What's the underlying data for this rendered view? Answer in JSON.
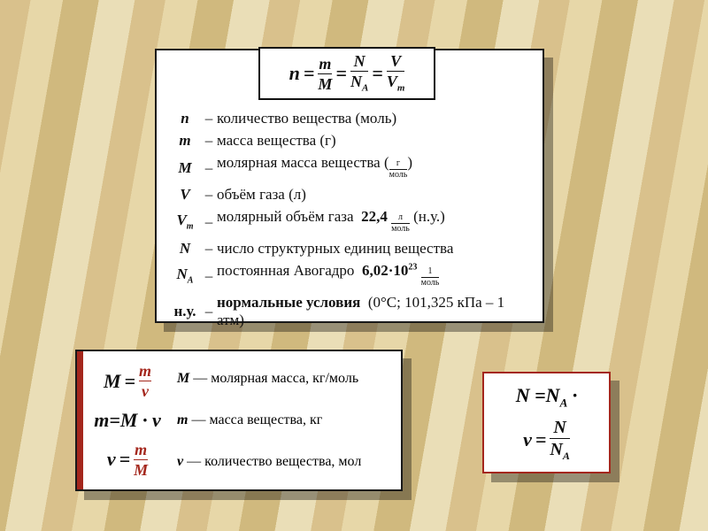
{
  "colors": {
    "accent": "#a4271d",
    "text": "#111",
    "panel": "#fff"
  },
  "main": {
    "equation": {
      "lhs": "n",
      "f1n": "m",
      "f1d": "M",
      "f2n": "N",
      "f2d": "N_A",
      "f3n": "V",
      "f3d": "V_m"
    },
    "rows": [
      {
        "sym": "n",
        "text": "количество вещества (моль)"
      },
      {
        "sym": "m",
        "text": "масса вещества (г)"
      },
      {
        "sym": "M",
        "text": "молярная масса вещества",
        "unit_num": "г",
        "unit_den": "моль"
      },
      {
        "sym": "V",
        "text": "объём газа (л)"
      },
      {
        "sym": "V_m",
        "text": "молярный объём газа",
        "value": "22,4",
        "unit_num": "л",
        "unit_den": "моль",
        "tail": "(н.у.)"
      },
      {
        "sym": "N",
        "text": "число структурных единиц вещества"
      },
      {
        "sym": "N_A",
        "text": "постоянная Авогадро",
        "value": "6,02·10",
        "exp": "23",
        "unit_num": "1",
        "unit_den": "моль"
      },
      {
        "sym": "н.у.",
        "text": "нормальные условия",
        "tail": "(0°С; 101,325 кПа – 1 атм)"
      }
    ]
  },
  "left": {
    "eq1": {
      "lhs": "M",
      "num": "m",
      "den": "v"
    },
    "eq2": "m=M · v",
    "eq3": {
      "lhs": "v",
      "num": "m",
      "den": "M"
    },
    "d1": {
      "sym": "M",
      "text": "молярная масса, кг/моль"
    },
    "d2": {
      "sym": "m",
      "text": "масса вещества, кг"
    },
    "d3": {
      "sym": "v",
      "text": "количество вещества, мол"
    }
  },
  "right": {
    "line1": "N =N_A ·",
    "eq": {
      "lhs": "v",
      "num": "N",
      "den": "N_A"
    }
  }
}
